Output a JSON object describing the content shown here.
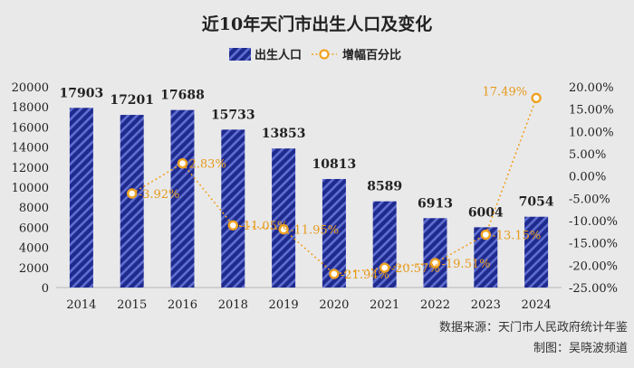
{
  "chart_data": {
    "type": "bar+line",
    "title": "近10年天门市出生人口及变化",
    "categories": [
      "2014",
      "2015",
      "2016",
      "2018",
      "2019",
      "2020",
      "2021",
      "2022",
      "2023",
      "2024"
    ],
    "series": [
      {
        "name": "出生人口",
        "type": "bar",
        "axis": "left",
        "values": [
          17903,
          17201,
          17688,
          15733,
          13853,
          10813,
          8589,
          6913,
          6004,
          7054
        ],
        "labels": [
          "17903",
          "17201",
          "17688",
          "15733",
          "13853",
          "10813",
          "8589",
          "6913",
          "6004",
          "7054"
        ]
      },
      {
        "name": "增幅百分比",
        "type": "line",
        "axis": "right",
        "values": [
          null,
          -3.92,
          2.83,
          -11.05,
          -11.95,
          -21.94,
          -20.57,
          -19.51,
          -13.15,
          17.49
        ],
        "labels": [
          "",
          "-3.92%",
          "2.83%",
          "-11.05%",
          "-11.95%",
          "-21.94%",
          "-20.57%",
          "-19.51%",
          "-13.15%",
          "17.49%"
        ]
      }
    ],
    "y_left": {
      "min": 0,
      "max": 20000,
      "ticks": [
        "0",
        "2000",
        "4000",
        "6000",
        "8000",
        "10000",
        "12000",
        "14000",
        "16000",
        "18000",
        "20000"
      ]
    },
    "y_right": {
      "min": -25,
      "max": 20,
      "ticks": [
        "-25.00%",
        "-20.00%",
        "-15.00%",
        "-10.00%",
        "-5.00%",
        "0.00%",
        "5.00%",
        "10.00%",
        "15.00%",
        "20.00%"
      ]
    },
    "grid": false,
    "legend_position": "top-center",
    "colors": {
      "bar": "#1f2a8f",
      "bar_stripe": "#5f6fd0",
      "line": "#f0a321",
      "label_orange": "#e69a1a",
      "text": "#222222",
      "background": "#e9e9ea"
    }
  },
  "footer": {
    "source": "数据来源：天门市人民政府统计年鉴",
    "credit": "制图：吴晓波频道"
  }
}
